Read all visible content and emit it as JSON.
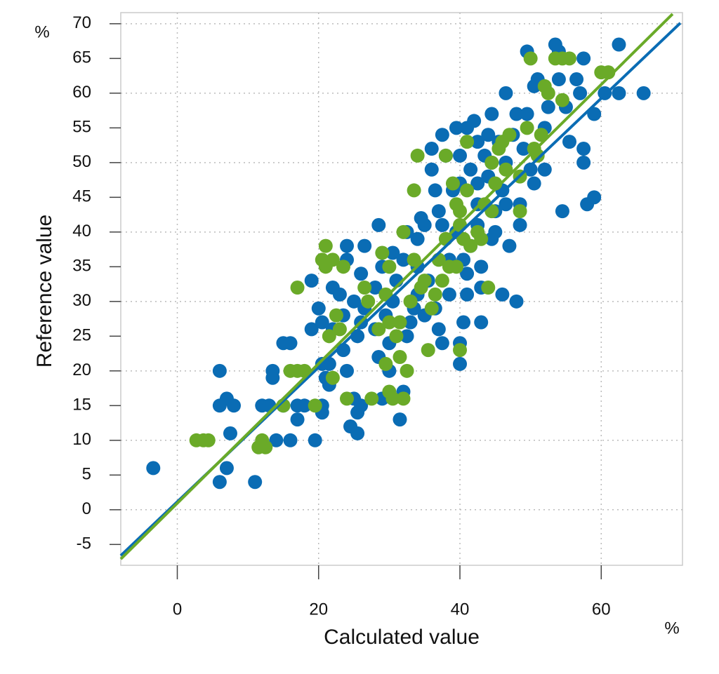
{
  "chart_data": {
    "type": "scatter",
    "x_label": "Calculated value",
    "y_label": "Reference value",
    "x_unit": "%",
    "y_unit": "%",
    "xlim": [
      -8,
      71.5
    ],
    "ylim": [
      -8,
      71.6
    ],
    "xticks": [
      0,
      20,
      40,
      60
    ],
    "yticks": [
      -5,
      0,
      5,
      10,
      15,
      20,
      25,
      30,
      35,
      40,
      45,
      50,
      55,
      60,
      65,
      70
    ],
    "ygrid": [
      0,
      10,
      20,
      30,
      40,
      50,
      60,
      70
    ],
    "grid": true,
    "series": [
      {
        "color": "#0a6cb4",
        "x": [
          -3.4,
          6,
          6,
          7,
          8,
          7.5,
          6,
          7,
          11,
          12,
          13,
          13.5,
          13.5,
          14,
          15,
          15,
          16,
          16,
          17,
          17,
          18,
          19.5,
          19,
          20,
          20.5,
          20.5,
          20.5,
          19,
          20.5,
          21,
          21.5,
          22,
          22,
          23,
          24,
          24,
          24,
          23.5,
          24.5,
          25.5,
          25.5,
          25,
          26,
          25.5,
          26,
          26.5,
          26.5,
          26,
          28,
          28,
          28.5,
          29,
          28.5,
          29,
          30,
          30,
          29.5,
          30.5,
          31,
          32,
          31.5,
          32,
          32.5,
          33,
          33.5,
          34,
          34,
          34,
          34.5,
          35,
          35,
          36,
          36,
          36.5,
          37,
          37.5,
          38,
          37.5,
          37,
          38.5,
          39,
          39.5,
          40,
          40,
          40,
          40,
          40.5,
          41,
          41,
          41.5,
          41,
          42,
          41.5,
          42.5,
          42.5,
          42.5,
          43,
          43,
          43.5,
          44,
          44,
          44.5,
          44.5,
          45,
          45.5,
          46,
          46,
          46.5,
          46.5,
          47,
          47.5,
          48,
          48,
          48.5,
          49,
          49.5,
          49.5,
          50,
          50.5,
          50.5,
          51,
          52,
          52,
          52.5,
          53.5,
          54,
          54,
          54.5,
          55,
          55.5,
          56.5,
          57,
          57.5,
          57.5,
          57.5,
          58,
          59,
          59,
          60.5,
          62.5,
          62.5,
          66,
          44.5,
          45,
          40.5,
          38.5,
          36.5,
          35.5,
          37.5,
          43,
          48.5,
          46.5,
          42.5,
          39.5,
          32.5,
          30.5,
          25,
          23.5,
          21.5
        ],
        "values": [
          6,
          20,
          15,
          16,
          15,
          11,
          4,
          6,
          4,
          15,
          15,
          20,
          19,
          10,
          15,
          24,
          24,
          10,
          15,
          13,
          15,
          10,
          33,
          29,
          21,
          15,
          14,
          26,
          27,
          19,
          18,
          26,
          32,
          31,
          38,
          36,
          20,
          23,
          12,
          11,
          14,
          16,
          15,
          25,
          27,
          29,
          38,
          34,
          26,
          32,
          41,
          35,
          22,
          16,
          20,
          24,
          28,
          30,
          33,
          36,
          13,
          17,
          25,
          27,
          29,
          31,
          35,
          39,
          42,
          28,
          41,
          52,
          49,
          46,
          43,
          54,
          51,
          24,
          26,
          31,
          46,
          40,
          51,
          47,
          21,
          24,
          27,
          31,
          34,
          38,
          55,
          56,
          49,
          44,
          41,
          47,
          27,
          35,
          51,
          54,
          48,
          57,
          39,
          43,
          53,
          31,
          46,
          60,
          50,
          38,
          54,
          57,
          30,
          44,
          52,
          57,
          66,
          49,
          47,
          61,
          62,
          55,
          49,
          58,
          67,
          62,
          66,
          43,
          58,
          53,
          62,
          60,
          52,
          50,
          65,
          44,
          57,
          45,
          60,
          67,
          60,
          60,
          50,
          40,
          36,
          36,
          29,
          33,
          41,
          32,
          41,
          44,
          53,
          55,
          40,
          37,
          30,
          28,
          21
        ]
      },
      {
        "color": "#6aaa28",
        "x": [
          2.7,
          3.7,
          4.4,
          11.5,
          12,
          12.5,
          15,
          16,
          17,
          18,
          17,
          19.5,
          20.5,
          21,
          21,
          22,
          23.5,
          22.5,
          23,
          21.5,
          22,
          24,
          26.5,
          27,
          27.5,
          28.5,
          29,
          29.5,
          29.5,
          30,
          30,
          30,
          30.5,
          31,
          31.5,
          31.5,
          32,
          32,
          32.5,
          33,
          33.5,
          34,
          33.5,
          34.5,
          35,
          35.5,
          36,
          36.5,
          37,
          37.5,
          38,
          38,
          38.5,
          39,
          39.5,
          39.5,
          40,
          40,
          40,
          40.5,
          41,
          41,
          41.5,
          42.5,
          43,
          43.5,
          44,
          44.5,
          44.5,
          45,
          45.5,
          46,
          46.5,
          47,
          48.5,
          48.5,
          49.5,
          50,
          50.5,
          51,
          51.5,
          52,
          52.5,
          53.5,
          54.5,
          55.5,
          54.5,
          60,
          61
        ],
        "values": [
          10,
          10,
          10,
          9,
          10,
          9,
          15,
          20,
          20,
          20,
          32,
          15,
          36,
          38,
          35,
          36,
          35,
          28,
          26,
          25,
          19,
          16,
          32,
          30,
          16,
          26,
          37,
          21,
          31,
          35,
          27,
          17,
          16,
          25,
          27,
          22,
          40,
          16,
          20,
          30,
          36,
          51,
          46,
          32,
          33,
          23,
          29,
          31,
          36,
          33,
          39,
          51,
          35,
          47,
          44,
          35,
          41,
          23,
          43,
          39,
          53,
          46,
          38,
          40,
          39,
          44,
          32,
          43,
          50,
          47,
          52,
          53,
          49,
          54,
          48,
          43,
          55,
          65,
          52,
          51,
          54,
          61,
          60,
          65,
          65,
          65,
          59,
          63,
          63
        ]
      }
    ],
    "fit_lines": [
      {
        "color": "#0a6cb4",
        "x": [
          -8,
          71.2
        ],
        "values": [
          -6.6,
          70.1
        ]
      },
      {
        "color": "#6aaa28",
        "x": [
          -8,
          70.1
        ],
        "values": [
          -7.1,
          71.4
        ]
      }
    ]
  }
}
